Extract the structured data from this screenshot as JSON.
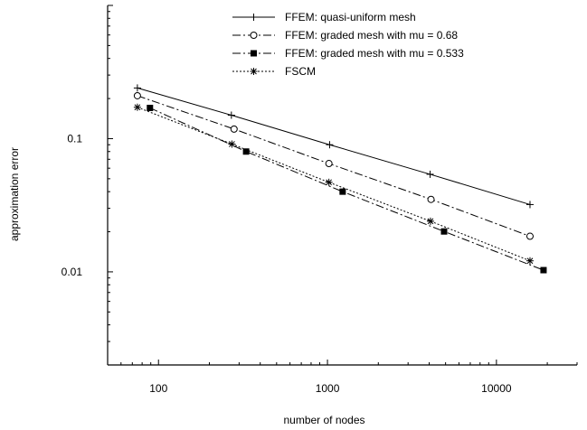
{
  "chart_data": {
    "type": "line",
    "title": "",
    "xlabel": "number of nodes",
    "ylabel": "approximation error",
    "xscale": "log",
    "yscale": "log",
    "xlim": [
      50,
      30000
    ],
    "ylim": [
      0.002,
      1
    ],
    "xticks": [
      100,
      1000,
      10000
    ],
    "xtick_labels": [
      "100",
      "1000",
      "10000"
    ],
    "yticks": [
      0.01,
      0.1
    ],
    "ytick_labels": [
      "0.01",
      "0.1"
    ],
    "grid": false,
    "legend_position": "top-right",
    "series": [
      {
        "name": "FFEM: quasi-uniform mesh",
        "line_style": "solid",
        "marker": "plus",
        "x": [
          75,
          270,
          1030,
          4050,
          15800
        ],
        "y": [
          0.24,
          0.15,
          0.09,
          0.054,
          0.032
        ]
      },
      {
        "name": "FFEM: graded mesh with mu = 0.68",
        "line_style": "dash-dot",
        "marker": "open-circle",
        "x": [
          75,
          280,
          1020,
          4100,
          15800
        ],
        "y": [
          0.21,
          0.118,
          0.065,
          0.035,
          0.0185
        ]
      },
      {
        "name": "FFEM: graded mesh with mu = 0.533",
        "line_style": "dash-dot",
        "marker": "filled-square",
        "x": [
          89,
          330,
          1230,
          4900,
          19000
        ],
        "y": [
          0.17,
          0.08,
          0.04,
          0.0201,
          0.0103
        ]
      },
      {
        "name": "FSCM",
        "line_style": "dotted",
        "marker": "asterisk",
        "x": [
          75,
          272,
          1020,
          4070,
          15800
        ],
        "y": [
          0.172,
          0.091,
          0.047,
          0.024,
          0.0121
        ]
      }
    ]
  }
}
